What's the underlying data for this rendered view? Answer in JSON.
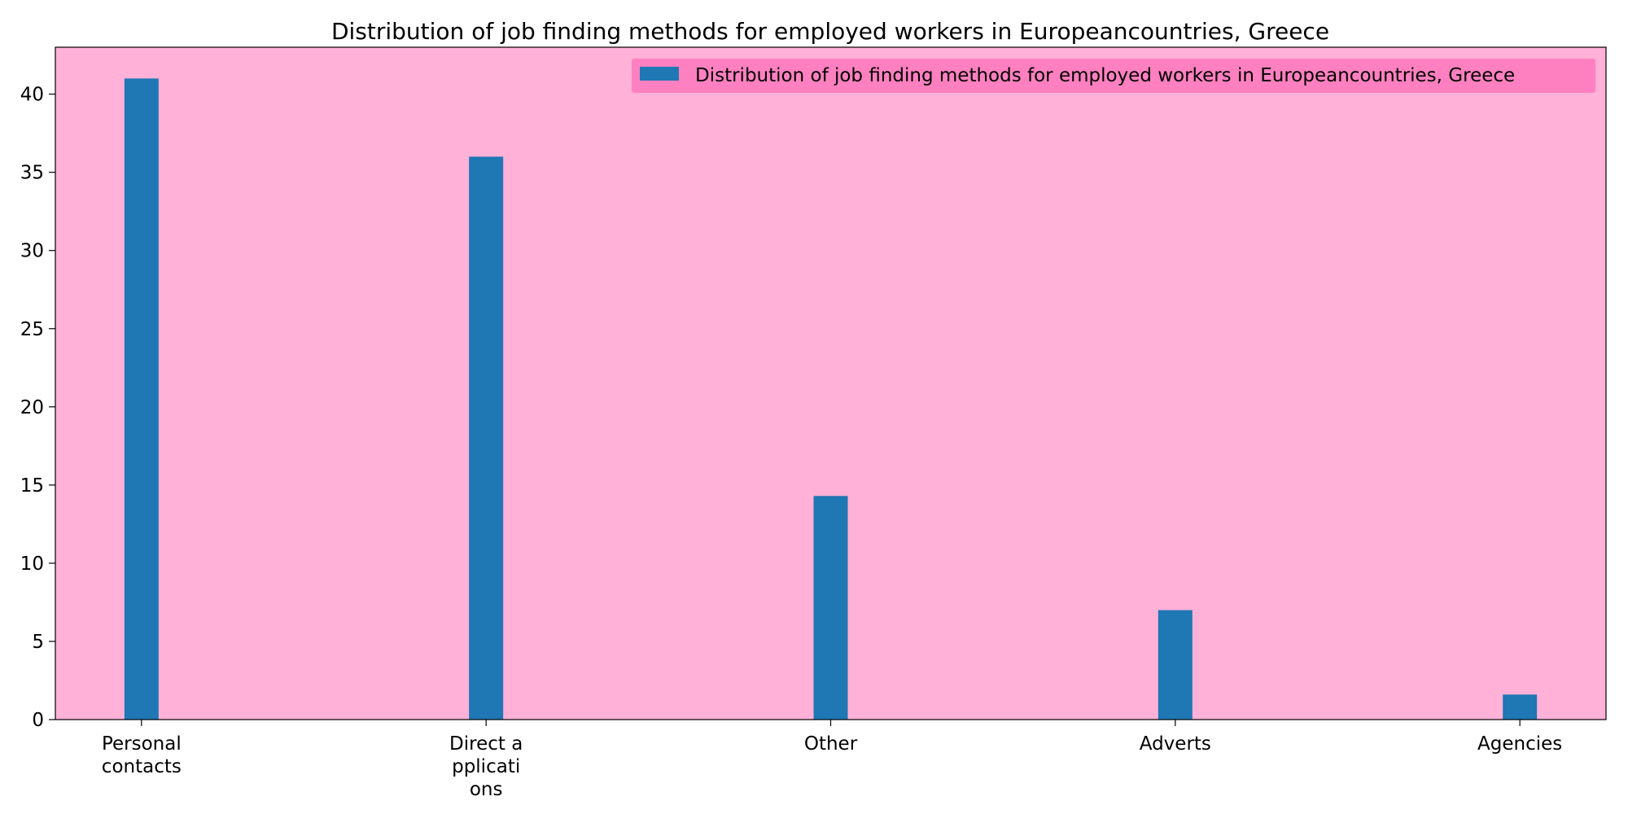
{
  "chart_data": {
    "type": "bar",
    "title": "Distribution of job finding methods for employed workers in Europeancountries, Greece",
    "xlabel": "",
    "ylabel": "",
    "categories": [
      [
        "Personal",
        "contacts"
      ],
      [
        "Direct a",
        "pplicati",
        "ons"
      ],
      [
        "Other"
      ],
      [
        "Adverts"
      ],
      [
        "Agencies"
      ]
    ],
    "series": [
      {
        "name": "Distribution of job finding methods for employed workers in Europeancountries, Greece",
        "values": [
          41,
          36,
          14.3,
          7,
          1.6
        ]
      }
    ],
    "ylim": [
      0,
      43
    ],
    "yticks": [
      0,
      5,
      10,
      15,
      20,
      25,
      30,
      35,
      40
    ],
    "legend_position": "top-right",
    "grid": false,
    "colors": {
      "plot_background": "#ffb1d8",
      "bar": "#1f77b4",
      "legend_background": "#ff80c0",
      "page_background": "#ffffff",
      "axis": "#000000"
    }
  }
}
